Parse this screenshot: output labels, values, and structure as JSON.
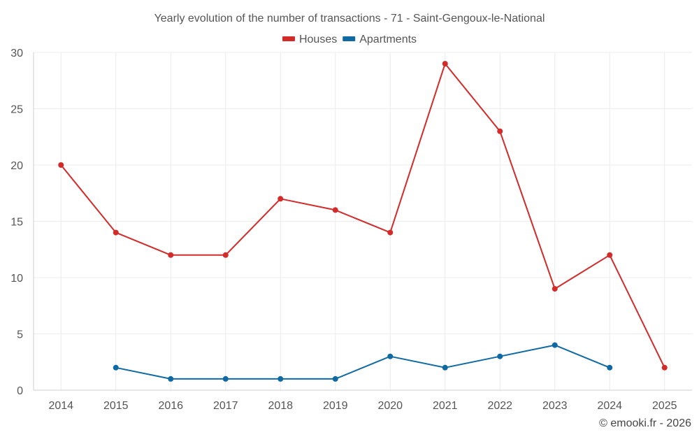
{
  "chart_data": {
    "type": "line",
    "title": "Yearly evolution of the number of transactions - 71 - Saint-Gengoux-le-National",
    "x": [
      "2014",
      "2015",
      "2016",
      "2017",
      "2018",
      "2019",
      "2020",
      "2021",
      "2022",
      "2023",
      "2024",
      "2025"
    ],
    "series": [
      {
        "name": "Houses",
        "color": "#d32a2a",
        "values": [
          20,
          14,
          12,
          12,
          17,
          16,
          14,
          29,
          23,
          9,
          12,
          2
        ]
      },
      {
        "name": "Apartments",
        "color": "#0f6aa3",
        "values": [
          null,
          2,
          1,
          1,
          1,
          1,
          3,
          2,
          3,
          4,
          2,
          null
        ]
      }
    ],
    "ylim": [
      0,
      30
    ],
    "yticks": [
      "0",
      "5",
      "10",
      "15",
      "20",
      "25",
      "30"
    ],
    "xlabel": "",
    "ylabel": "",
    "grid": true,
    "legend": "top-center"
  },
  "credit": "© emooki.fr - 2026"
}
